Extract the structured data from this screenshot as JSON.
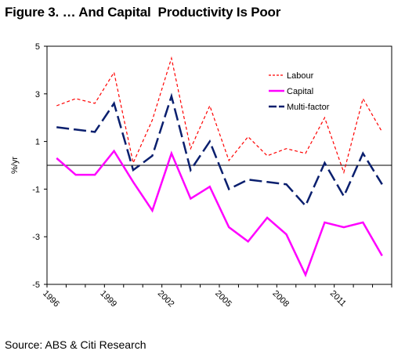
{
  "figure": {
    "title": "Figure 3. … And Capital  Productivity Is Poor",
    "source": "Source: ABS & Citi Research"
  },
  "chart_data": {
    "type": "line",
    "title": "",
    "ylabel": "%/yr",
    "xlabel": "",
    "ylim": [
      -5,
      5
    ],
    "yticks": [
      5,
      3,
      1,
      -1,
      -3,
      -5
    ],
    "x": [
      1996,
      1997,
      1998,
      1999,
      2000,
      2001,
      2002,
      2003,
      2004,
      2005,
      2006,
      2007,
      2008,
      2009,
      2010,
      2011,
      2012,
      2013
    ],
    "xticks": [
      1996,
      1999,
      2002,
      2005,
      2008,
      2011
    ],
    "legend_position": "top-right",
    "grid": false,
    "series": [
      {
        "name": "Labour",
        "color": "#ff0000",
        "style": "dotted",
        "values": [
          2.5,
          2.8,
          2.6,
          3.9,
          0.1,
          1.9,
          4.5,
          0.7,
          2.5,
          0.2,
          1.2,
          0.4,
          0.7,
          0.5,
          2.0,
          -0.3,
          2.8,
          1.4
        ]
      },
      {
        "name": "Capital",
        "color": "#ff00ff",
        "style": "solid",
        "values": [
          0.3,
          -0.4,
          -0.4,
          0.6,
          -0.7,
          -1.9,
          0.5,
          -1.4,
          -0.9,
          -2.6,
          -3.2,
          -2.2,
          -2.9,
          -4.6,
          -2.4,
          -2.6,
          -2.4,
          -3.8
        ]
      },
      {
        "name": "Multi-factor",
        "color": "#0a1f6e",
        "style": "dashed",
        "values": [
          1.6,
          1.5,
          1.4,
          2.6,
          -0.2,
          0.4,
          2.9,
          -0.2,
          1.0,
          -1.0,
          -0.6,
          -0.7,
          -0.8,
          -1.7,
          0.1,
          -1.3,
          0.5,
          -0.8
        ]
      }
    ]
  }
}
